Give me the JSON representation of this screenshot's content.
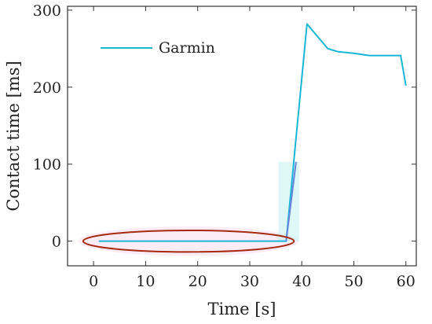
{
  "chart_data": {
    "type": "line",
    "xlabel": "Time [s]",
    "ylabel": "Contact time [ms]",
    "xlim": [
      -5,
      62
    ],
    "ylim": [
      -32,
      305
    ],
    "xticks": [
      0,
      10,
      20,
      30,
      40,
      50,
      60
    ],
    "yticks": [
      0,
      100,
      200,
      300
    ],
    "grid": false,
    "legend": {
      "placement": "top-left"
    },
    "series": [
      {
        "name": "Garmin",
        "color": "#1ab6d8",
        "x": [
          1,
          37,
          41,
          45,
          47,
          50,
          53,
          56,
          59,
          60
        ],
        "y": [
          0,
          0,
          282,
          250,
          246,
          244,
          241,
          241,
          241,
          202
        ]
      }
    ],
    "annotations": [
      {
        "type": "ellipse",
        "color": "#a52a10",
        "fill": "#fbe4f2",
        "x_range": [
          -2,
          38.5
        ],
        "y_center": 0,
        "y_half_height": 14
      },
      {
        "type": "highlight-band",
        "color": "#c8f2f2",
        "x_range": [
          35.5,
          39.5
        ],
        "y_range": [
          0,
          103
        ]
      }
    ]
  }
}
